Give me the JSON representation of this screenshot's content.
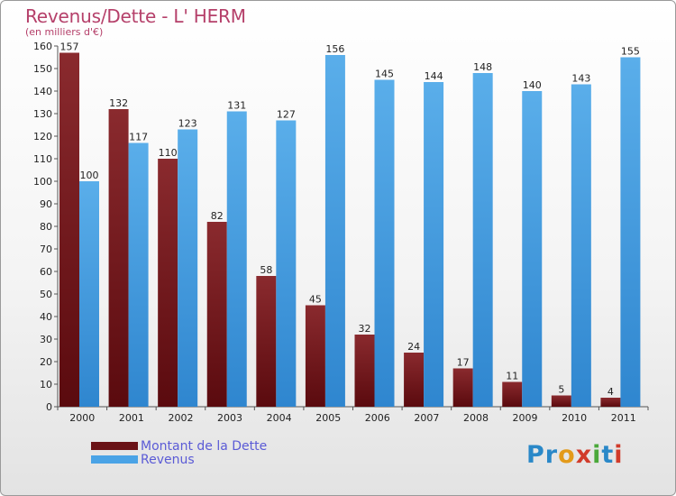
{
  "chart_data": {
    "type": "bar",
    "title": "Revenus/Dette - L' HERM",
    "subtitle": "(en milliers d'€)",
    "categories": [
      "2000",
      "2001",
      "2002",
      "2003",
      "2004",
      "2005",
      "2006",
      "2007",
      "2008",
      "2009",
      "2010",
      "2011"
    ],
    "series": [
      {
        "name": "Montant de la Dette",
        "color": "#7a1a1e",
        "values": [
          157,
          132,
          110,
          82,
          58,
          45,
          32,
          24,
          17,
          11,
          5,
          4
        ]
      },
      {
        "name": "Revenus",
        "color": "#4aa3e6",
        "values": [
          100,
          117,
          123,
          131,
          127,
          156,
          145,
          144,
          148,
          140,
          143,
          155
        ]
      }
    ],
    "ylim": [
      0,
      160
    ],
    "yticks": [
      0,
      10,
      20,
      30,
      40,
      50,
      60,
      70,
      80,
      90,
      100,
      110,
      120,
      130,
      140,
      150,
      160
    ],
    "grid": false,
    "legend_position": "bottom-left"
  },
  "logo_text": "Proxiti"
}
